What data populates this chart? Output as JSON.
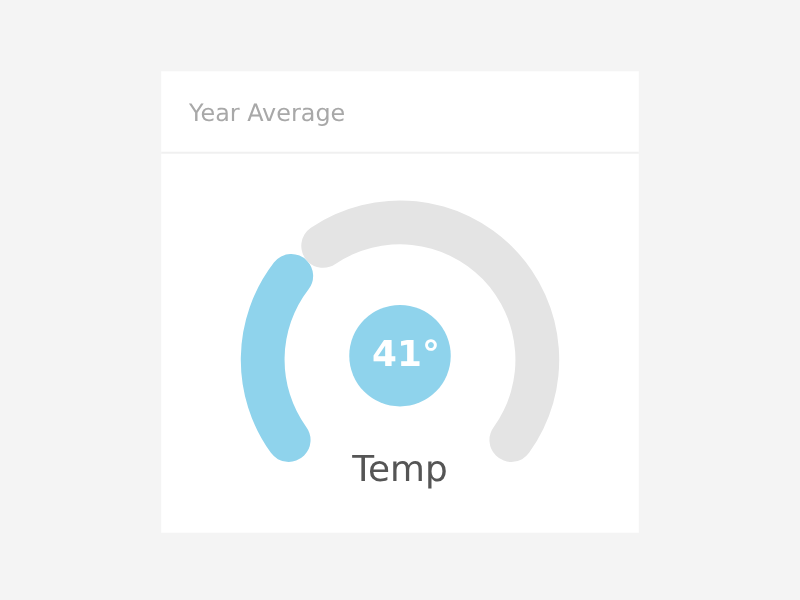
{
  "chart_data": {
    "type": "donut",
    "title": "Year Average",
    "categories": [
      null,
      null
    ],
    "values": [
      34,
      66
    ],
    "colors": [
      "#8fd3ec",
      "#e4e4e4"
    ],
    "annotations": [
      "41°",
      "Temp"
    ],
    "legend": false
  }
}
